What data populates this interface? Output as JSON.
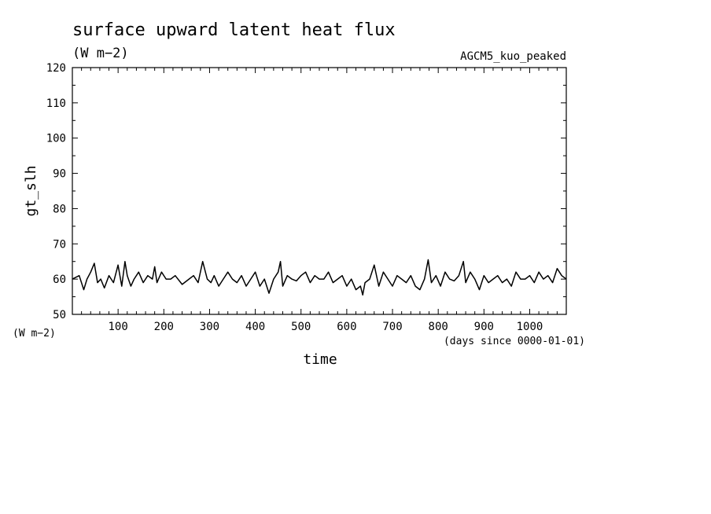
{
  "chart_data": {
    "type": "line",
    "title": "surface upward latent heat flux",
    "subtitle": "(W m−2)",
    "annotation": "AGCM5_kuo_peaked",
    "xlabel": "time",
    "xunits": "(days since 0000-01-01)",
    "ylabel": "gt_slh",
    "yunits": "(W m−2)",
    "xlim": [
      0,
      1080
    ],
    "ylim": [
      50,
      120
    ],
    "xticks": [
      100,
      200,
      300,
      400,
      500,
      600,
      700,
      800,
      900,
      1000
    ],
    "xtick_labels": [
      "100",
      "200",
      "300",
      "400",
      "500",
      "600",
      "700",
      "800",
      "900",
      "1000"
    ],
    "yticks": [
      50,
      60,
      70,
      80,
      90,
      100,
      110,
      120
    ],
    "ytick_labels": [
      "50",
      "60",
      "70",
      "80",
      "90",
      "100",
      "110",
      "120"
    ],
    "grid": false,
    "series": [
      {
        "x": [
          0,
          15,
          25,
          32,
          40,
          48,
          55,
          62,
          70,
          80,
          90,
          100,
          108,
          115,
          120,
          128,
          135,
          145,
          155,
          165,
          175,
          180,
          185,
          195,
          205,
          215,
          225,
          240,
          255,
          265,
          275,
          285,
          295,
          303,
          310,
          320,
          330,
          340,
          350,
          360,
          370,
          380,
          390,
          400,
          410,
          420,
          430,
          440,
          450,
          455,
          460,
          470,
          480,
          490,
          500,
          510,
          520,
          530,
          540,
          550,
          560,
          570,
          580,
          590,
          600,
          610,
          620,
          630,
          635,
          640,
          650,
          660,
          670,
          680,
          690,
          700,
          710,
          720,
          730,
          740,
          750,
          760,
          770,
          778,
          785,
          795,
          805,
          815,
          825,
          835,
          845,
          855,
          860,
          870,
          880,
          890,
          900,
          910,
          920,
          930,
          940,
          950,
          960,
          970,
          980,
          990,
          1000,
          1010,
          1020,
          1030,
          1040,
          1050,
          1060,
          1070,
          1080
        ],
        "y": [
          60,
          61,
          57,
          60,
          62,
          64.5,
          59,
          60,
          57.5,
          61,
          59,
          64,
          58,
          65,
          61,
          58,
          60,
          62,
          59,
          61,
          60,
          63.5,
          59,
          62,
          60,
          60,
          61,
          58.5,
          60,
          61,
          59,
          65,
          60,
          59,
          61,
          58,
          60,
          62,
          60,
          59,
          61,
          58,
          60,
          62,
          58,
          60,
          56,
          60,
          62,
          65,
          58,
          61,
          60,
          59.5,
          61,
          62,
          59,
          61,
          60,
          60,
          62,
          59,
          60,
          61,
          58,
          60,
          57,
          58,
          55.5,
          59,
          60,
          64,
          58,
          62,
          60,
          58,
          61,
          60,
          59,
          61,
          58,
          57,
          60,
          65.5,
          59,
          61,
          58,
          62,
          60,
          59.5,
          61,
          65,
          59,
          62,
          60,
          57,
          61,
          59,
          60,
          61,
          59,
          60,
          58,
          62,
          60,
          60,
          61,
          59,
          62,
          60,
          61,
          59,
          63,
          61,
          60
        ]
      }
    ]
  }
}
